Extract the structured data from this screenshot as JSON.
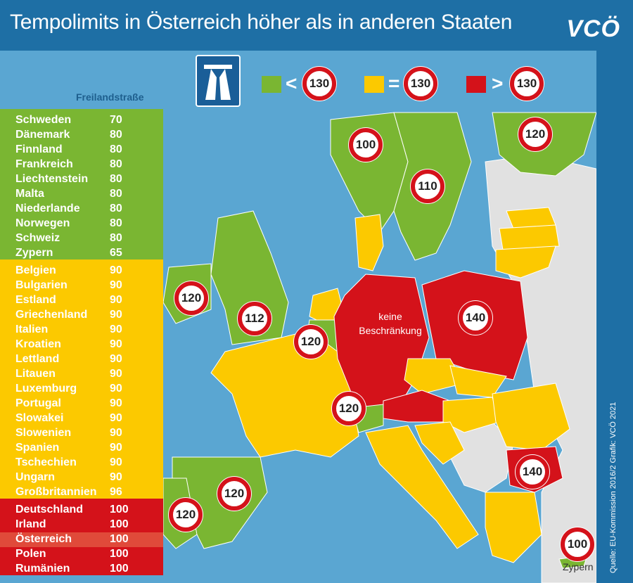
{
  "title": "Tempolimits in Österreich höher als in anderen Staaten",
  "logo": "VCÖ",
  "source": "Quelle: EU-Kommission 2016/2 Grafik: VCÖ 2021",
  "sidebar_title": "Freilandstraße",
  "colors": {
    "green": "#7ab632",
    "yellow": "#fcc900",
    "red": "#d4121a",
    "highlight": "#e04a3a",
    "sea": "#5aa6d2",
    "other": "#e1e1e1"
  },
  "legend": [
    {
      "op": "<",
      "value": "130",
      "color": "#7ab632"
    },
    {
      "op": "=",
      "value": "130",
      "color": "#fcc900"
    },
    {
      "op": ">",
      "value": "130",
      "color": "#d4121a"
    }
  ],
  "groups": [
    {
      "color": "green",
      "rows": [
        {
          "name": "Schweden",
          "value": "70"
        },
        {
          "name": "Dänemark",
          "value": "80"
        },
        {
          "name": "Finnland",
          "value": "80"
        },
        {
          "name": "Frankreich",
          "value": "80"
        },
        {
          "name": "Liechtenstein",
          "value": "80"
        },
        {
          "name": "Malta",
          "value": "80"
        },
        {
          "name": "Niederlande",
          "value": "80"
        },
        {
          "name": "Norwegen",
          "value": "80"
        },
        {
          "name": "Schweiz",
          "value": "80"
        },
        {
          "name": "Zypern",
          "value": "65"
        }
      ]
    },
    {
      "color": "yellow",
      "rows": [
        {
          "name": "Belgien",
          "value": "90"
        },
        {
          "name": "Bulgarien",
          "value": "90"
        },
        {
          "name": "Estland",
          "value": "90"
        },
        {
          "name": "Griechenland",
          "value": "90"
        },
        {
          "name": "Italien",
          "value": "90"
        },
        {
          "name": "Kroatien",
          "value": "90"
        },
        {
          "name": "Lettland",
          "value": "90"
        },
        {
          "name": "Litauen",
          "value": "90"
        },
        {
          "name": "Luxemburg",
          "value": "90"
        },
        {
          "name": "Portugal",
          "value": "90"
        },
        {
          "name": "Slowakei",
          "value": "90"
        },
        {
          "name": "Slowenien",
          "value": "90"
        },
        {
          "name": "Spanien",
          "value": "90"
        },
        {
          "name": "Tschechien",
          "value": "90"
        },
        {
          "name": "Ungarn",
          "value": "90"
        },
        {
          "name": "Großbritannien",
          "value": "96"
        }
      ]
    },
    {
      "color": "red",
      "rows": [
        {
          "name": "Deutschland",
          "value": "100"
        },
        {
          "name": "Irland",
          "value": "100"
        },
        {
          "name": "Österreich",
          "value": "100",
          "highlight": true
        },
        {
          "name": "Polen",
          "value": "100"
        },
        {
          "name": "Rumänien",
          "value": "100"
        }
      ]
    }
  ],
  "map_signs": [
    "100",
    "110",
    "120",
    "120",
    "112",
    "120",
    "140",
    "120",
    "120",
    "120",
    "140",
    "100"
  ],
  "germany_label": "keine Beschränkung",
  "cyprus_label": "Zypern"
}
